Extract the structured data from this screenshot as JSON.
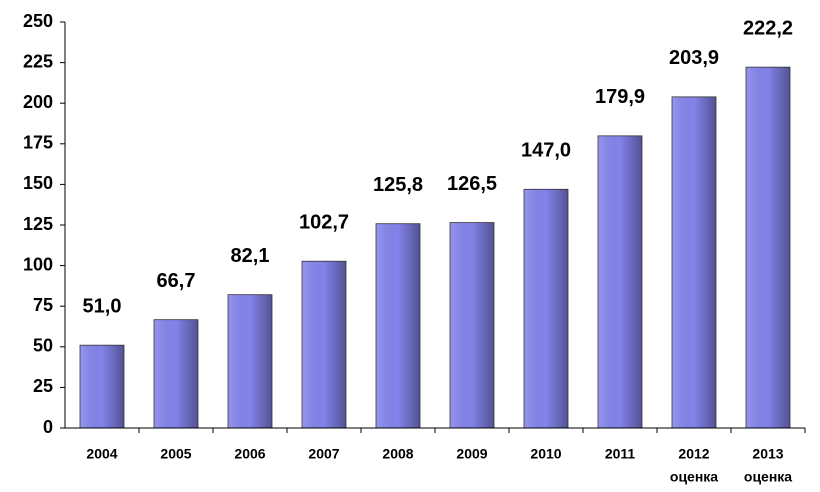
{
  "chart_data": {
    "type": "bar",
    "categories": [
      "2004",
      "2005",
      "2006",
      "2007",
      "2008",
      "2009",
      "2010",
      "2011",
      "2012",
      "2013"
    ],
    "category_sublabels": [
      null,
      null,
      null,
      null,
      null,
      null,
      null,
      null,
      "оценка",
      "оценка"
    ],
    "values": [
      51.0,
      66.7,
      82.1,
      102.7,
      125.8,
      126.5,
      147.0,
      179.9,
      203.9,
      222.2
    ],
    "value_labels": [
      "51,0",
      "66,7",
      "82,1",
      "102,7",
      "125,8",
      "126,5",
      "147,0",
      "179,9",
      "203,9",
      "222,2"
    ],
    "color": "#8585ee",
    "ylim": [
      0,
      250
    ],
    "yticks": [
      0,
      25,
      50,
      75,
      100,
      125,
      150,
      175,
      200,
      225,
      250
    ],
    "grid": false
  }
}
